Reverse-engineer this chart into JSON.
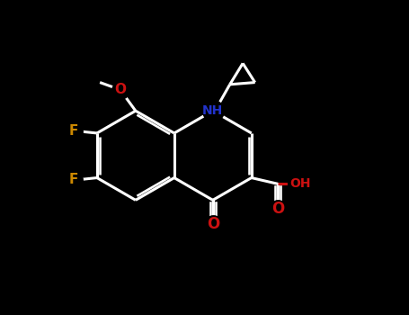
{
  "bg_color": "#000000",
  "bond_color": "#ffffff",
  "N_color": "#2233cc",
  "O_color": "#cc1111",
  "F_color": "#cc8800",
  "lw": 2.2,
  "figsize": [
    4.55,
    3.5
  ],
  "dpi": 100,
  "xlim": [
    0,
    10
  ],
  "ylim": [
    0,
    7.7
  ],
  "bx": 3.3,
  "by": 3.9,
  "r": 1.1
}
